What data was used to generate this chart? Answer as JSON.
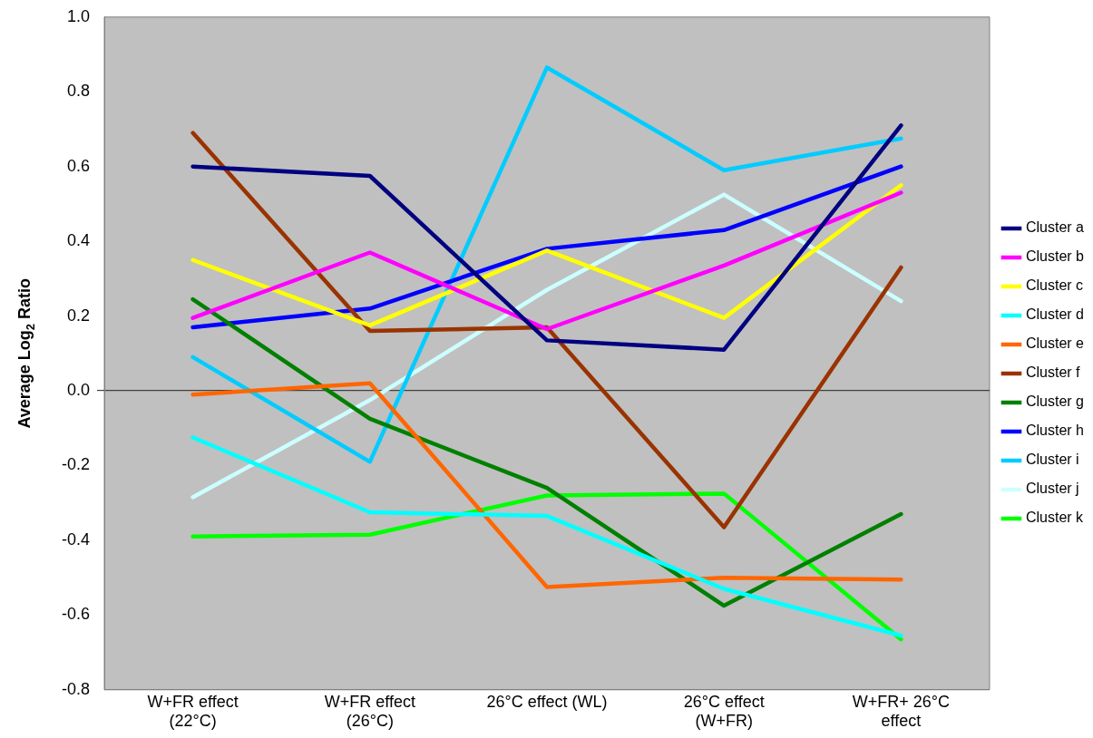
{
  "chart_data": {
    "type": "line",
    "ylabel": "Average Log$_{2}$ Ratio",
    "categories": [
      "W+FR effect (22°C)",
      "W+FR effect (26°C)",
      "26°C effect (WL)",
      "26°C effect (W+FR)",
      "W+FR+ 26°C effect"
    ],
    "ylim": [
      -0.8,
      1.0
    ],
    "yticks": [
      {
        "value": -0.8,
        "label": "-0.8"
      },
      {
        "value": -0.6,
        "label": "-0.6"
      },
      {
        "value": -0.4,
        "label": "-0.4"
      },
      {
        "value": -0.2,
        "label": "-0.2"
      },
      {
        "value": 0,
        "label": "0.0"
      },
      {
        "value": 0.2,
        "label": "0.2"
      },
      {
        "value": 0.4,
        "label": "0.4"
      },
      {
        "value": 0.6,
        "label": "0.6"
      },
      {
        "value": 0.8,
        "label": "0.8"
      },
      {
        "value": 1.0,
        "label": "1.0"
      }
    ],
    "legend": "right",
    "marker": "none",
    "line_style": "solid",
    "series": [
      {
        "name": "Cluster a",
        "color": "#000080",
        "values": [
          0.6,
          0.575,
          0.135,
          0.11,
          0.71
        ]
      },
      {
        "name": "Cluster b",
        "color": "#ff00ff",
        "values": [
          0.195,
          0.37,
          0.165,
          0.335,
          0.53
        ]
      },
      {
        "name": "Cluster c",
        "color": "#ffff00",
        "values": [
          0.35,
          0.175,
          0.375,
          0.195,
          0.55
        ]
      },
      {
        "name": "Cluster d",
        "color": "#00ffff",
        "values": [
          -0.125,
          -0.325,
          -0.335,
          -0.53,
          -0.655
        ]
      },
      {
        "name": "Cluster e",
        "color": "#ff6600",
        "values": [
          -0.01,
          0.02,
          -0.525,
          -0.5,
          -0.505
        ]
      },
      {
        "name": "Cluster f",
        "color": "#993300",
        "values": [
          0.69,
          0.16,
          0.17,
          -0.365,
          0.33
        ]
      },
      {
        "name": "Cluster g",
        "color": "#008000",
        "values": [
          0.245,
          -0.075,
          -0.26,
          -0.575,
          -0.33
        ]
      },
      {
        "name": "Cluster h",
        "color": "#0000ff",
        "values": [
          0.17,
          0.22,
          0.38,
          0.43,
          0.6
        ]
      },
      {
        "name": "Cluster i",
        "color": "#00ccff",
        "values": [
          0.09,
          -0.19,
          0.865,
          0.59,
          0.675
        ]
      },
      {
        "name": "Cluster j",
        "color": "#ccffff",
        "values": [
          -0.285,
          -0.025,
          0.27,
          0.525,
          0.24
        ]
      },
      {
        "name": "Cluster k",
        "color": "#00ff00",
        "values": [
          -0.39,
          -0.385,
          -0.28,
          -0.275,
          -0.665
        ]
      }
    ]
  }
}
